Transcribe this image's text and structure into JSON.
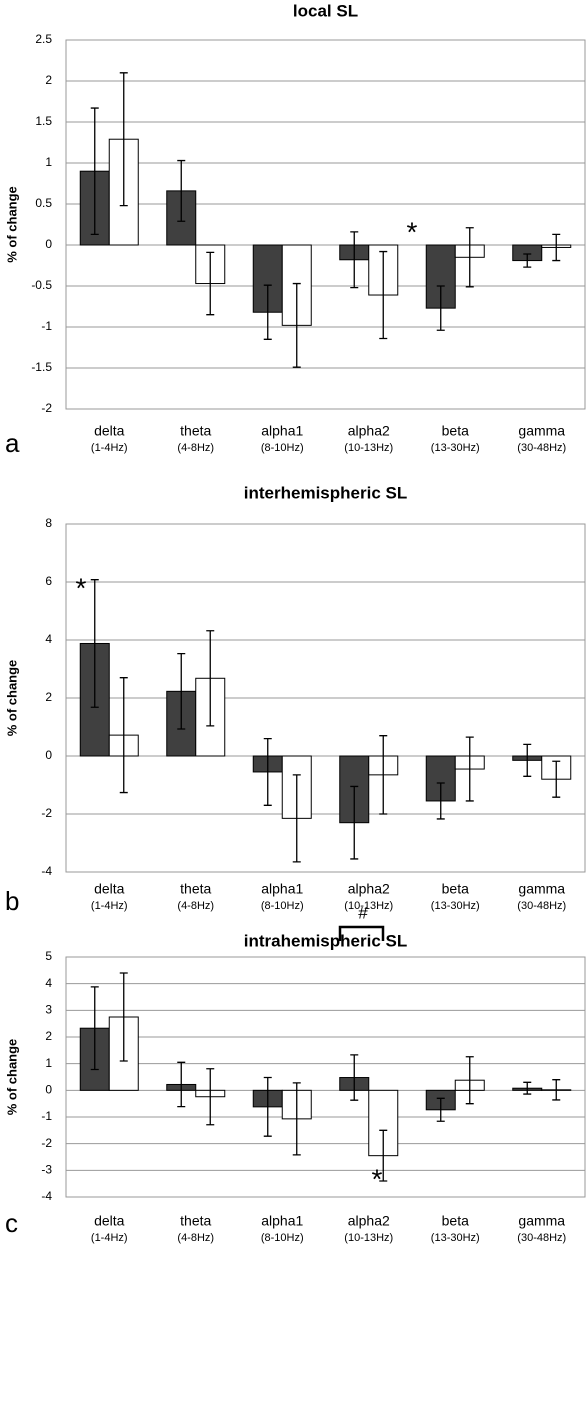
{
  "chart_data": [
    {
      "type": "bar",
      "title": "local SL",
      "panel_label": "a",
      "ylabel": "% of change",
      "categories": [
        "delta",
        "theta",
        "alpha1",
        "alpha2",
        "beta",
        "gamma"
      ],
      "category_ranges": [
        "(1-4Hz)",
        "(4-8Hz)",
        "(8-10Hz)",
        "(10-13Hz)",
        "(13-30Hz)",
        "(30-48Hz)"
      ],
      "ylim": [
        -2,
        2.5
      ],
      "yticks": [
        -2,
        -1.5,
        -1,
        -0.5,
        0,
        0.5,
        1,
        1.5,
        2,
        2.5
      ],
      "grid": true,
      "series": [
        {
          "color": "#404040",
          "values": [
            0.9,
            0.66,
            -0.82,
            -0.18,
            -0.77,
            -0.19
          ],
          "errors": [
            0.77,
            0.37,
            0.33,
            0.34,
            0.27,
            0.08
          ]
        },
        {
          "color": "#ffffff",
          "values": [
            1.29,
            -0.47,
            -0.98,
            -0.61,
            -0.15,
            -0.03
          ],
          "errors": [
            0.81,
            0.38,
            0.51,
            0.53,
            0.36,
            0.16
          ]
        }
      ],
      "annotations": [
        "*"
      ]
    },
    {
      "type": "bar",
      "title": "interhemispheric SL",
      "panel_label": "b",
      "ylabel": "% of change",
      "categories": [
        "delta",
        "theta",
        "alpha1",
        "alpha2",
        "beta",
        "gamma"
      ],
      "category_ranges": [
        "(1-4Hz)",
        "(4-8Hz)",
        "(8-10Hz)",
        "(10-13Hz)",
        "(13-30Hz)",
        "(30-48Hz)"
      ],
      "ylim": [
        -4,
        8
      ],
      "yticks": [
        -4,
        -2,
        0,
        2,
        4,
        6,
        8
      ],
      "grid": true,
      "series": [
        {
          "color": "#404040",
          "values": [
            3.88,
            2.23,
            -0.55,
            -2.3,
            -1.55,
            -0.15
          ],
          "errors": [
            2.2,
            1.3,
            1.15,
            1.25,
            0.62,
            0.55
          ]
        },
        {
          "color": "#ffffff",
          "values": [
            0.72,
            2.68,
            -2.15,
            -0.65,
            -0.45,
            -0.8
          ],
          "errors": [
            1.98,
            1.64,
            1.5,
            1.35,
            1.1,
            0.62
          ]
        }
      ],
      "annotations": [
        "*"
      ]
    },
    {
      "type": "bar",
      "title": "intrahemispheric SL",
      "panel_label": "c",
      "ylabel": "% of change",
      "categories": [
        "delta",
        "theta",
        "alpha1",
        "alpha2",
        "beta",
        "gamma"
      ],
      "category_ranges": [
        "(1-4Hz)",
        "(4-8Hz)",
        "(8-10Hz)",
        "(10-13Hz)",
        "(13-30Hz)",
        "(30-48Hz)"
      ],
      "ylim": [
        -4,
        5
      ],
      "yticks": [
        -4,
        -3,
        -2,
        -1,
        0,
        1,
        2,
        3,
        4,
        5
      ],
      "grid": true,
      "series": [
        {
          "color": "#404040",
          "values": [
            2.33,
            0.22,
            -0.62,
            0.48,
            -0.73,
            0.08
          ],
          "errors": [
            1.55,
            0.83,
            1.1,
            0.85,
            0.43,
            0.22
          ]
        },
        {
          "color": "#ffffff",
          "values": [
            2.75,
            -0.24,
            -1.07,
            -2.45,
            0.38,
            0.02
          ],
          "errors": [
            1.65,
            1.05,
            1.35,
            0.95,
            0.88,
            0.38
          ]
        }
      ],
      "annotations": [
        "#",
        "*"
      ]
    }
  ]
}
